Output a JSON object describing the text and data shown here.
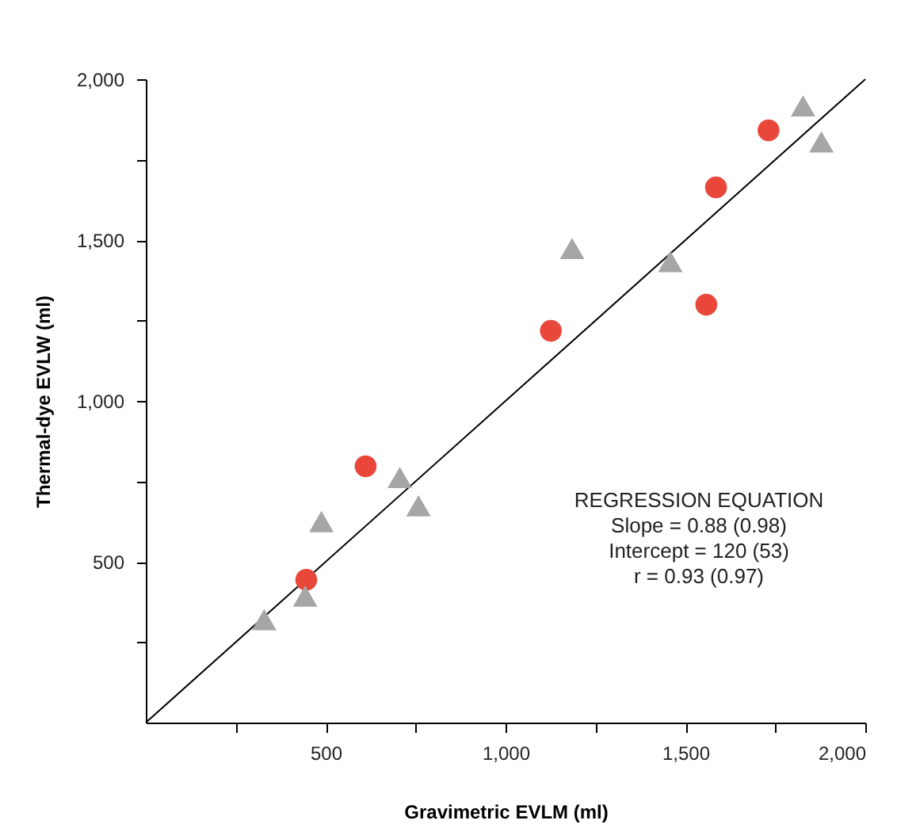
{
  "chart_data": {
    "type": "scatter",
    "xlabel": "Gravimetric EVLM (ml)",
    "ylabel": "Thermal-dye EVLW (ml)",
    "xlim": [
      0,
      2000
    ],
    "ylim": [
      0,
      2000
    ],
    "xticks": [
      {
        "value": 250,
        "label": null
      },
      {
        "value": 500,
        "label": "500"
      },
      {
        "value": 750,
        "label": null
      },
      {
        "value": 1000,
        "label": "1,000"
      },
      {
        "value": 1250,
        "label": null
      },
      {
        "value": 1500,
        "label": "1,500"
      },
      {
        "value": 1750,
        "label": null
      },
      {
        "value": 2000,
        "label": "2,000"
      }
    ],
    "yticks": [
      {
        "value": 250,
        "label": null
      },
      {
        "value": 500,
        "label": "500"
      },
      {
        "value": 750,
        "label": null
      },
      {
        "value": 1000,
        "label": "1,000"
      },
      {
        "value": 1250,
        "label": null
      },
      {
        "value": 1500,
        "label": "1,500"
      },
      {
        "value": 1750,
        "label": null
      },
      {
        "value": 2000,
        "label": "2,000"
      }
    ],
    "grid": false,
    "series": [
      {
        "type": "line",
        "color": "#000000",
        "line_style": "solid",
        "x": [
          0,
          2000
        ],
        "values": [
          0,
          2000
        ]
      },
      {
        "color": "#e8473a",
        "marker": "circle",
        "x": [
          446,
          611,
          1126,
          1558,
          1585,
          1731
        ],
        "values": [
          444,
          797,
          1218,
          1299,
          1664,
          1841
        ]
      },
      {
        "color": "#a6a6a6",
        "marker": "triangle",
        "x": [
          329,
          443,
          488,
          706,
          758,
          1185,
          1458,
          1827,
          1878
        ],
        "values": [
          320,
          393,
          625,
          762,
          674,
          1474,
          1433,
          1917,
          1805
        ]
      }
    ],
    "annotations": [
      "REGRESSION EQUATION",
      "Slope = 0.88 (0.98)",
      "Intercept = 120 (53)",
      "r = 0.93 (0.97)"
    ]
  }
}
